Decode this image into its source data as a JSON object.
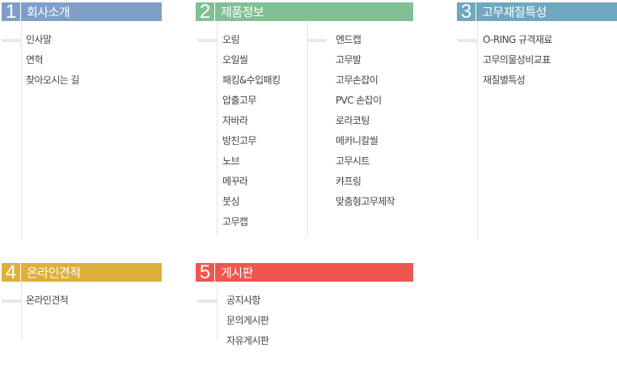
{
  "colors": {
    "s1": "#7f9fc9",
    "s2": "#80c094",
    "s3": "#6fa8be",
    "s4": "#deaf3a",
    "s5": "#ef5650"
  },
  "sections": [
    {
      "num": "1",
      "title": "회사소개",
      "items": [
        "인사말",
        "연혁",
        "찾아오시는 길"
      ]
    },
    {
      "num": "2",
      "title": "제품정보",
      "col1": [
        "오링",
        "오일씰",
        "패킹&수입패킹",
        "압출고무",
        "자바라",
        "방진고무",
        "노브",
        "메꾸라",
        "붓싱",
        "고무캡"
      ],
      "col2": [
        "엔드캡",
        "고무발",
        "고무손잡이",
        "PVC 손잡이",
        "로라코팅",
        "메카니칼씰",
        "고무시트",
        "캬프링",
        "맞춤형고무제작"
      ]
    },
    {
      "num": "3",
      "title": "고무재질특성",
      "items": [
        "O-RING 규격재료",
        "고무의물성비교표",
        "재질별특성"
      ]
    },
    {
      "num": "4",
      "title": "온라인견적",
      "items": [
        "온라인견적"
      ]
    },
    {
      "num": "5",
      "title": "게시판",
      "items": [
        "공지사항",
        "문의게시판",
        "자유게시판"
      ]
    }
  ]
}
